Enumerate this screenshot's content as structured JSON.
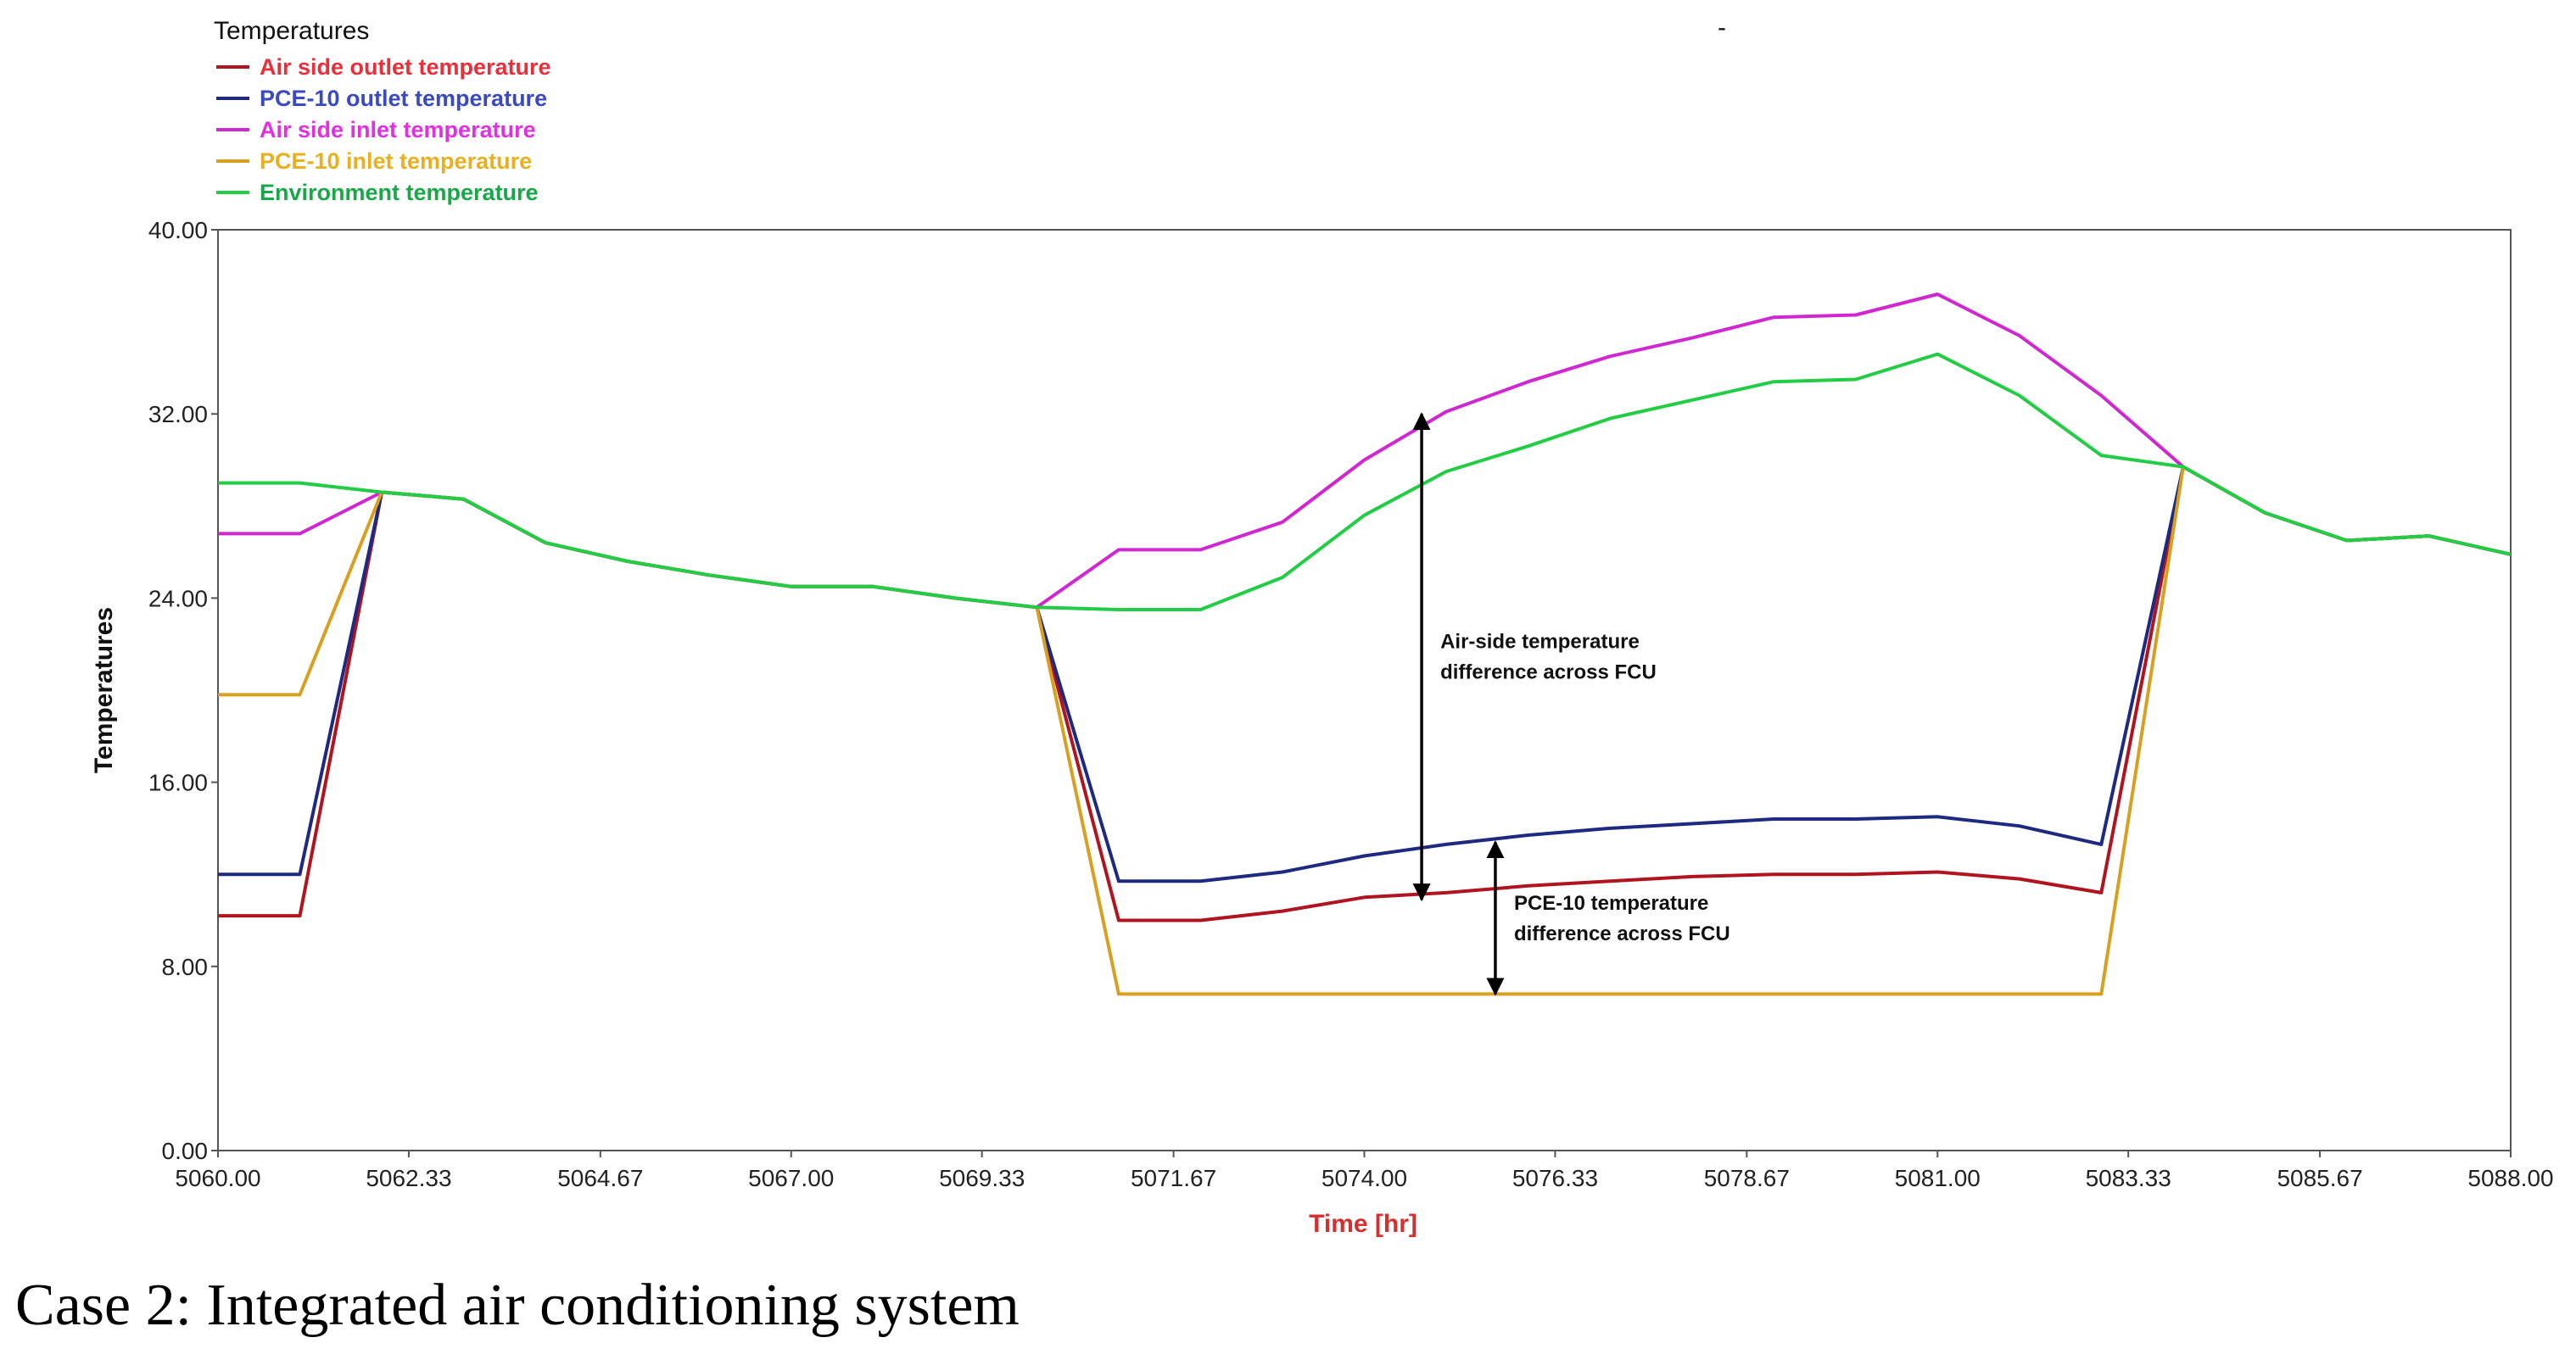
{
  "chart_data": {
    "type": "line",
    "legend_title": "Temperatures",
    "title_dash": "-",
    "ylabel": "Temperatures",
    "xlabel": "Time [hr]",
    "xlim": [
      5060,
      5088
    ],
    "ylim": [
      0,
      40
    ],
    "x_ticks": [
      5060,
      5062.33,
      5064.67,
      5067,
      5069.33,
      5071.67,
      5074,
      5076.33,
      5078.67,
      5081,
      5083.33,
      5085.67,
      5088
    ],
    "x_tick_labels": [
      "5060.00",
      "5062.33",
      "5064.67",
      "5067.00",
      "5069.33",
      "5071.67",
      "5074.00",
      "5076.33",
      "5078.67",
      "5081.00",
      "5083.33",
      "5085.67",
      "5088.00"
    ],
    "y_ticks": [
      0,
      8,
      16,
      24,
      32,
      40
    ],
    "y_tick_labels": [
      "0.00",
      "8.00",
      "16.00",
      "24.00",
      "32.00",
      "40.00"
    ],
    "grid": false,
    "legend_position": "top-left",
    "series": [
      {
        "name": "Air side outlet temperature",
        "color": "#b0141e",
        "label_color": "#e8303a",
        "x": [
          5060,
          5061,
          5062,
          5063,
          5064,
          5065,
          5066,
          5067,
          5068,
          5069,
          5070,
          5071,
          5072,
          5073,
          5074,
          5075,
          5076,
          5077,
          5078,
          5079,
          5080,
          5081,
          5082,
          5083,
          5084,
          5085,
          5086,
          5087,
          5088
        ],
        "values": [
          10.2,
          10.2,
          28.6,
          28.3,
          26.4,
          25.6,
          25,
          24.5,
          24.5,
          24,
          23.6,
          10,
          10,
          10.4,
          11,
          11.2,
          11.5,
          11.7,
          11.9,
          12,
          12,
          12.1,
          11.8,
          11.2,
          29.7,
          27.7,
          26.5,
          26.7,
          25.9
        ]
      },
      {
        "name": "PCE-10 outlet temperature",
        "color": "#1e2a80",
        "label_color": "#3a4ac0",
        "x": [
          5060,
          5061,
          5062,
          5063,
          5064,
          5065,
          5066,
          5067,
          5068,
          5069,
          5070,
          5071,
          5072,
          5073,
          5074,
          5075,
          5076,
          5077,
          5078,
          5079,
          5080,
          5081,
          5082,
          5083,
          5084,
          5085,
          5086,
          5087,
          5088
        ],
        "values": [
          12,
          12,
          28.6,
          28.3,
          26.4,
          25.6,
          25,
          24.5,
          24.5,
          24,
          23.6,
          11.7,
          11.7,
          12.1,
          12.8,
          13.3,
          13.7,
          14,
          14.2,
          14.4,
          14.4,
          14.5,
          14.1,
          13.3,
          29.7,
          27.7,
          26.5,
          26.7,
          25.9
        ]
      },
      {
        "name": "Air side inlet temperature",
        "color": "#d028d0",
        "label_color": "#e030e0",
        "x": [
          5060,
          5061,
          5062,
          5063,
          5064,
          5065,
          5066,
          5067,
          5068,
          5069,
          5070,
          5071,
          5072,
          5073,
          5074,
          5075,
          5076,
          5077,
          5078,
          5079,
          5080,
          5081,
          5082,
          5083,
          5084,
          5085,
          5086,
          5087,
          5088
        ],
        "values": [
          26.8,
          26.8,
          28.6,
          28.3,
          26.4,
          25.6,
          25,
          24.5,
          24.5,
          24,
          23.6,
          26.1,
          26.1,
          27.3,
          30,
          32.1,
          33.4,
          34.5,
          35.3,
          36.2,
          36.3,
          37.2,
          35.4,
          32.8,
          29.7,
          27.7,
          26.5,
          26.7,
          25.9
        ]
      },
      {
        "name": "PCE-10 inlet temperature",
        "color": "#d8a020",
        "label_color": "#e8b020",
        "x": [
          5060,
          5061,
          5062,
          5063,
          5064,
          5065,
          5066,
          5067,
          5068,
          5069,
          5070,
          5071,
          5072,
          5073,
          5074,
          5075,
          5076,
          5077,
          5078,
          5079,
          5080,
          5081,
          5082,
          5083,
          5084,
          5085,
          5086,
          5087,
          5088
        ],
        "values": [
          19.8,
          19.8,
          28.6,
          28.3,
          26.4,
          25.6,
          25,
          24.5,
          24.5,
          24,
          23.6,
          6.8,
          6.8,
          6.8,
          6.8,
          6.8,
          6.8,
          6.8,
          6.8,
          6.8,
          6.8,
          6.8,
          6.8,
          6.8,
          29.7,
          27.7,
          26.5,
          26.7,
          25.9
        ]
      },
      {
        "name": "Environment temperature",
        "color": "#22cc44",
        "label_color": "#18a848",
        "x": [
          5060,
          5061,
          5062,
          5063,
          5064,
          5065,
          5066,
          5067,
          5068,
          5069,
          5070,
          5071,
          5072,
          5073,
          5074,
          5075,
          5076,
          5077,
          5078,
          5079,
          5080,
          5081,
          5082,
          5083,
          5084,
          5085,
          5086,
          5087,
          5088
        ],
        "values": [
          29,
          29,
          28.6,
          28.3,
          26.4,
          25.6,
          25,
          24.5,
          24.5,
          24,
          23.6,
          23.5,
          23.5,
          24.9,
          27.6,
          29.5,
          30.6,
          31.8,
          32.6,
          33.4,
          33.5,
          34.6,
          32.8,
          30.2,
          29.7,
          27.7,
          26.5,
          26.7,
          25.9
        ]
      }
    ],
    "annotations": [
      {
        "lines": [
          "Air-side temperature",
          "difference across FCU"
        ],
        "x_value": 5074.7,
        "from_value": 32,
        "to_value": 10.9
      },
      {
        "lines": [
          "PCE-10 temperature",
          "difference across FCU"
        ],
        "x_value": 5075.6,
        "from_value": 13.4,
        "to_value": 6.8
      }
    ]
  },
  "caption": "Case 2: Integrated air conditioning system"
}
